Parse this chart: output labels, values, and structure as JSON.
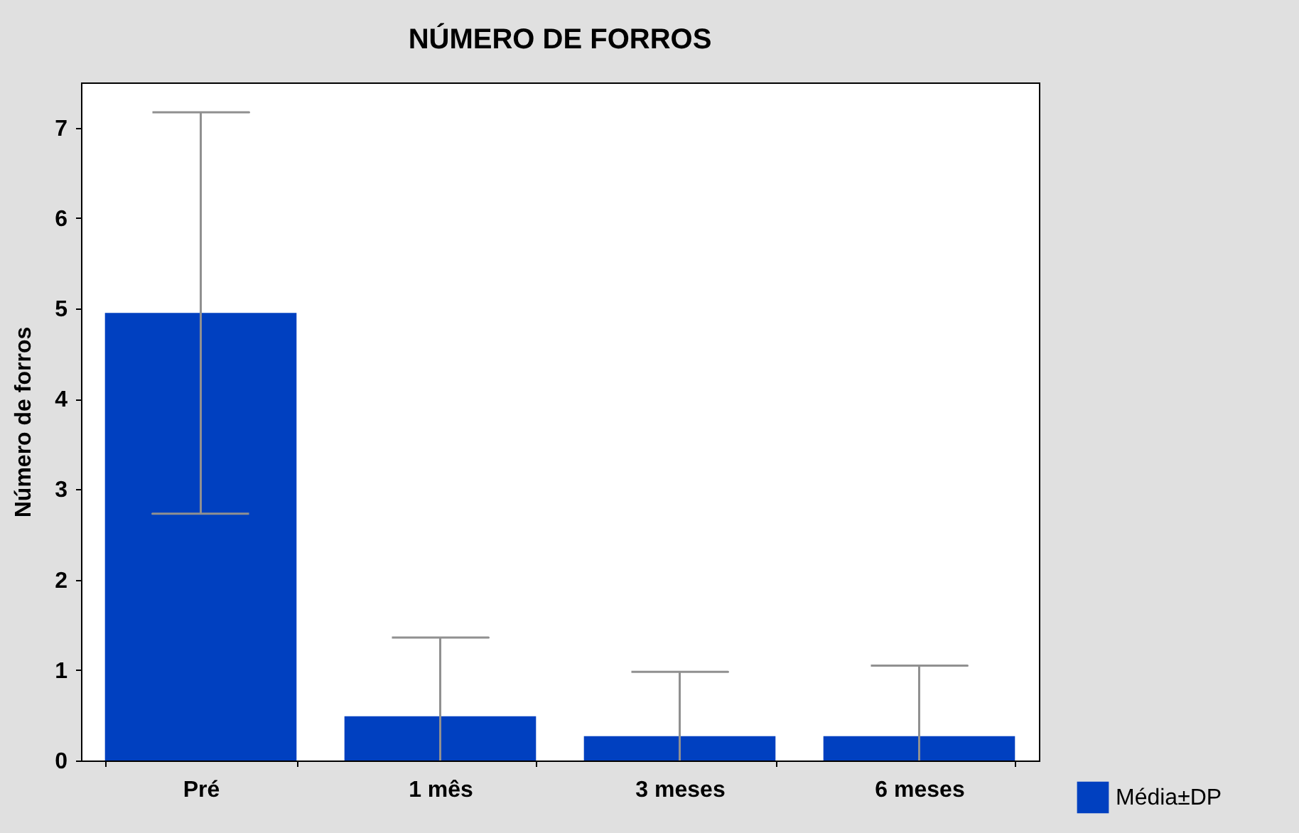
{
  "chart_data": {
    "type": "bar",
    "title": "NÚMERO DE FORROS",
    "ylabel": "Número de forros",
    "categories": [
      "Pré",
      "1 mês",
      "3 meses",
      "6 meses"
    ],
    "series": [
      {
        "name": "Média±DP",
        "color": "#0040c0",
        "values": [
          4.95,
          0.49,
          0.27,
          0.27
        ],
        "errors": [
          [
            2.73,
            7.17
          ],
          [
            0,
            1.36
          ],
          [
            0,
            0.98
          ],
          [
            0,
            1.05
          ]
        ]
      }
    ],
    "ylim": [
      0,
      7.5
    ],
    "yticks": [
      0,
      1,
      2,
      3,
      4,
      5,
      6,
      7
    ],
    "grid": false,
    "legend": "bottom right"
  }
}
